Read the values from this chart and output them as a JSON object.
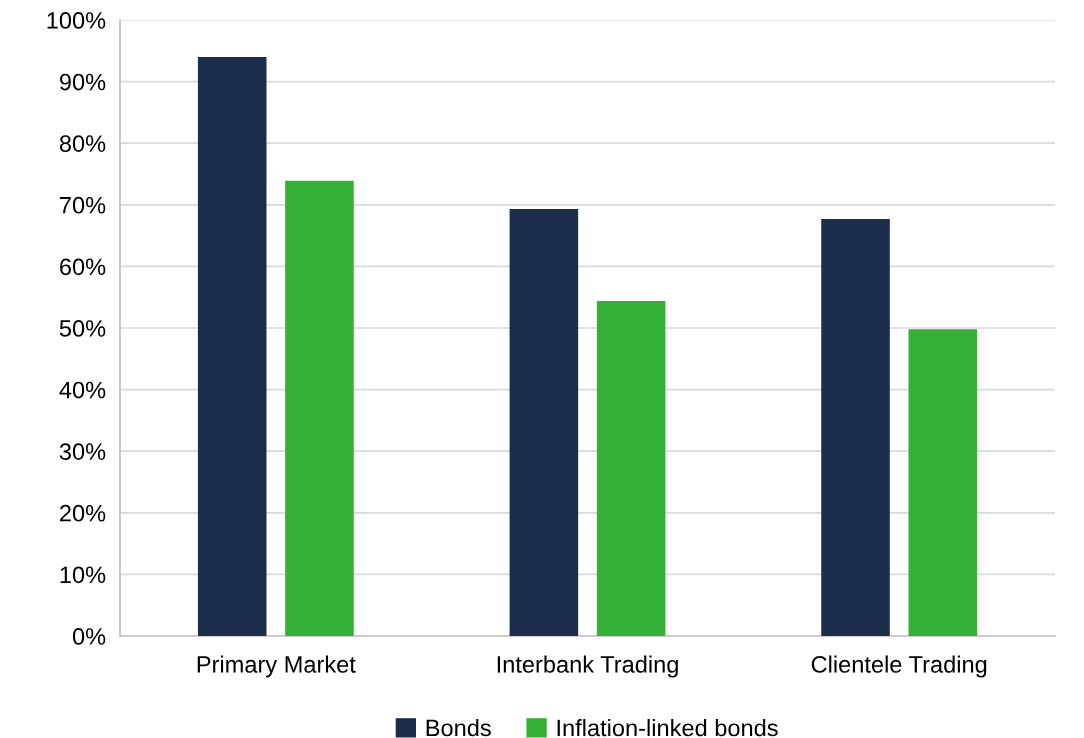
{
  "chart_data": {
    "type": "bar",
    "categories": [
      "Primary Market",
      "Interbank Trading",
      "Clientele Trading"
    ],
    "series": [
      {
        "name": "Bonds",
        "color": "#1b2d4a",
        "values": [
          94,
          69.3,
          67.7
        ]
      },
      {
        "name": "Inflation-linked bonds",
        "color": "#33b035",
        "values": [
          73.9,
          54.4,
          49.8
        ]
      }
    ],
    "ylim": [
      0,
      100
    ],
    "yticks": [
      {
        "value": 0,
        "label": "0%"
      },
      {
        "value": 10,
        "label": "10%"
      },
      {
        "value": 20,
        "label": "20%"
      },
      {
        "value": 30,
        "label": "30%"
      },
      {
        "value": 40,
        "label": "40%"
      },
      {
        "value": 50,
        "label": "50%"
      },
      {
        "value": 60,
        "label": "60%"
      },
      {
        "value": 70,
        "label": "70%"
      },
      {
        "value": 80,
        "label": "80%"
      },
      {
        "value": 90,
        "label": "90%"
      },
      {
        "value": 100,
        "label": "100%"
      }
    ],
    "grid": "y",
    "legend": "bottom"
  }
}
